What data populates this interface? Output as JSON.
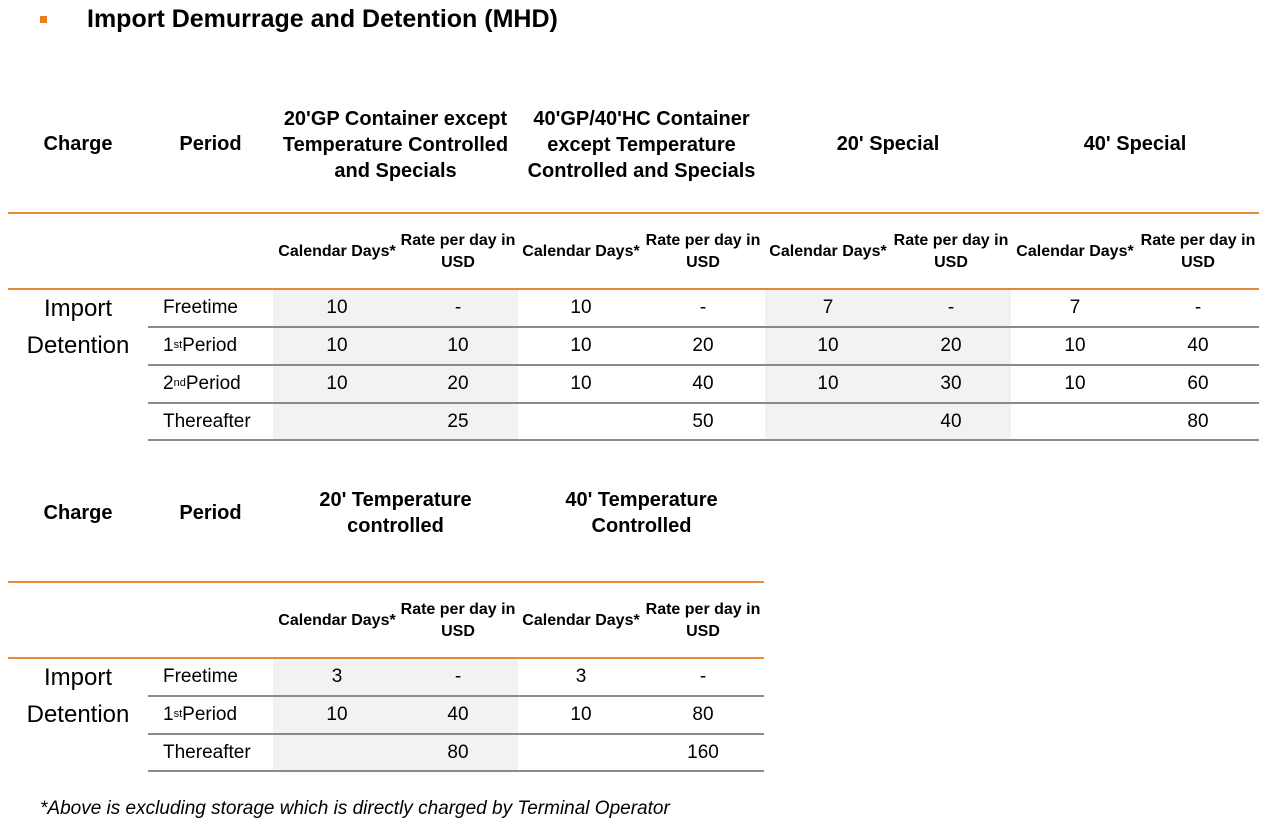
{
  "title": "Import Demurrage and Detention (MHD)",
  "table1": {
    "charge_header": "Charge",
    "period_header": "Period",
    "groups": [
      {
        "label": "20'GP Container except Temperature Controlled and Specials"
      },
      {
        "label": "40'GP/40'HC Container except Temperature Controlled and Specials"
      },
      {
        "label": "20' Special"
      },
      {
        "label": "40' Special"
      }
    ],
    "sub_days": "Calendar Days*",
    "sub_rate": "Rate per day in USD",
    "charge_label": "Import Detention",
    "rows": [
      {
        "period": "Freetime",
        "values": [
          "10",
          "-",
          "10",
          "-",
          "7",
          "-",
          "7",
          "-"
        ]
      },
      {
        "period_base": "1",
        "period_sup": "st",
        "period_rest": " Period",
        "values": [
          "10",
          "10",
          "10",
          "20",
          "10",
          "20",
          "10",
          "40"
        ]
      },
      {
        "period_base": "2",
        "period_sup": "nd",
        "period_rest": " Period",
        "values": [
          "10",
          "20",
          "10",
          "40",
          "10",
          "30",
          "10",
          "60"
        ]
      },
      {
        "period": "Thereafter",
        "values": [
          "",
          "25",
          "",
          "50",
          "",
          "40",
          "",
          "80"
        ]
      }
    ]
  },
  "table2": {
    "charge_header": "Charge",
    "period_header": "Period",
    "groups": [
      {
        "label": "20' Temperature controlled"
      },
      {
        "label": "40' Temperature Controlled"
      }
    ],
    "sub_days": "Calendar Days*",
    "sub_rate": "Rate per day in USD",
    "charge_label": "Import Detention",
    "rows": [
      {
        "period": "Freetime",
        "values": [
          "3",
          "-",
          "3",
          "-"
        ]
      },
      {
        "period_base": "1",
        "period_sup": "st",
        "period_rest": " Period",
        "values": [
          "10",
          "40",
          "10",
          "80"
        ]
      },
      {
        "period": "Thereafter",
        "values": [
          "",
          "80",
          "",
          "160"
        ]
      }
    ]
  },
  "footnote": "*Above is excluding storage which is directly charged by Terminal Operator",
  "colors": {
    "accent": "#e8893a",
    "shade": "#f2f2f2",
    "rule": "#8a8a8a"
  }
}
